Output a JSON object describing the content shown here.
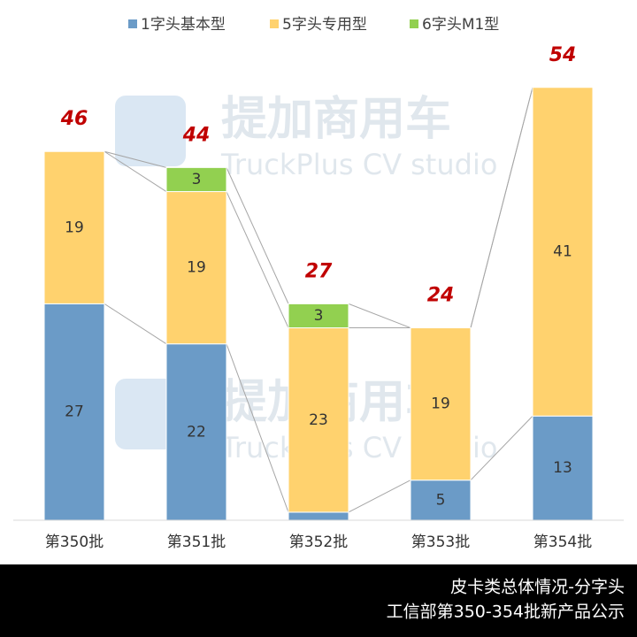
{
  "chart_data": {
    "type": "stacked-bar",
    "categories": [
      "第350批",
      "第351批",
      "第352批",
      "第353批",
      "第354批"
    ],
    "series": [
      {
        "name": "1字头基本型",
        "color": "#6b9bc7",
        "values": [
          27,
          22,
          1,
          5,
          13
        ]
      },
      {
        "name": "5字头专用型",
        "color": "#ffd26e",
        "values": [
          19,
          19,
          23,
          19,
          41
        ]
      },
      {
        "name": "6字头M1型",
        "color": "#92d050",
        "values": [
          null,
          3,
          3,
          null,
          null
        ]
      }
    ],
    "totals": [
      46,
      44,
      27,
      24,
      54
    ],
    "watermark": {
      "title": "提加商用车",
      "subtitle": "TruckPlus CV studio"
    },
    "footer": {
      "line1": "皮卡类总体情况-分字头",
      "line2": "工信部第350-354批新产品公示"
    }
  }
}
